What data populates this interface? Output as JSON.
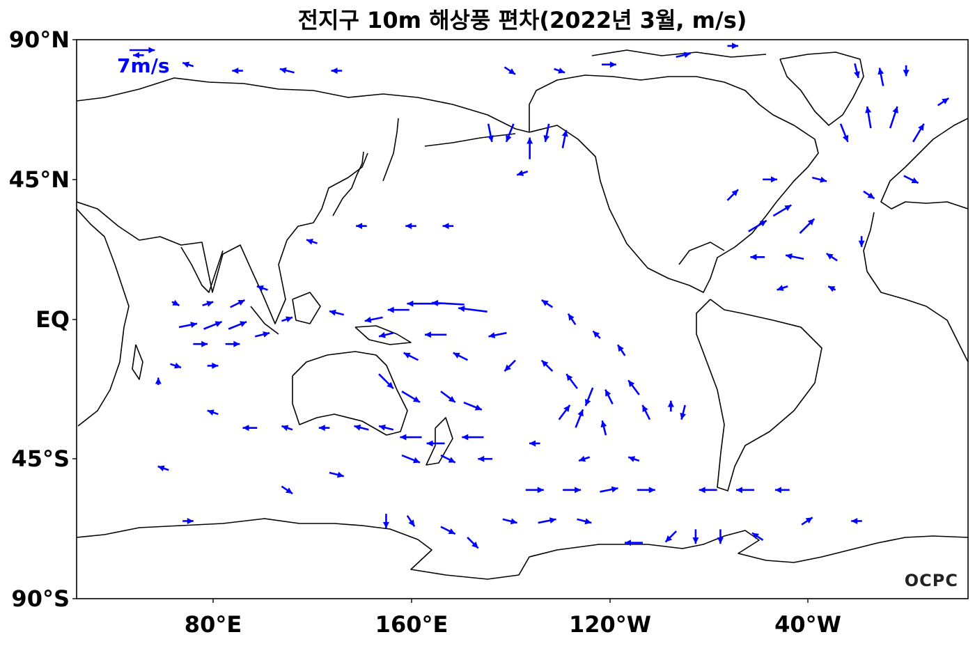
{
  "title": "전지구 10m 해상풍 편차(2022년 3월, m/s)",
  "lat_labels": [
    "90°N",
    "45°N",
    "EQ",
    "45°S",
    "90°S"
  ],
  "lon_labels": [
    "80°E",
    "160°E",
    "120°W",
    "40°W"
  ],
  "reference_vector": {
    "label": "7m/s",
    "speed": 7,
    "color": "#0000ff"
  },
  "logo": "OCPC",
  "colors": {
    "vector": "#0000ff",
    "coastline": "#000000",
    "background": "#ffffff"
  },
  "projection": {
    "type": "PlateCarree",
    "central_longitude": 180
  },
  "chart_data": {
    "type": "vector-field",
    "title": "전지구 10m 해상풍 편차(2022년 3월, m/s)",
    "units": "m/s",
    "lon_range": [
      25,
      385
    ],
    "lat_range": [
      -90,
      90
    ],
    "vectors": [
      {
        "lon": 165,
        "lat": 5,
        "u": -9,
        "v": 0
      },
      {
        "lon": 175,
        "lat": 5,
        "u": -9,
        "v": 0.5
      },
      {
        "lon": 185,
        "lat": 3,
        "u": -8,
        "v": 1
      },
      {
        "lon": 155,
        "lat": 3,
        "u": -6,
        "v": 0
      },
      {
        "lon": 145,
        "lat": 0,
        "u": -5,
        "v": -1
      },
      {
        "lon": 130,
        "lat": 2,
        "u": -4,
        "v": 1
      },
      {
        "lon": 150,
        "lat": -5,
        "u": -4,
        "v": -1
      },
      {
        "lon": 170,
        "lat": -5,
        "u": -6,
        "v": 0
      },
      {
        "lon": 195,
        "lat": -5,
        "u": -5,
        "v": -1
      },
      {
        "lon": 160,
        "lat": -12,
        "u": -4,
        "v": 2
      },
      {
        "lon": 180,
        "lat": -12,
        "u": -4,
        "v": 2
      },
      {
        "lon": 200,
        "lat": -15,
        "u": -3,
        "v": -3
      },
      {
        "lon": 150,
        "lat": -20,
        "u": 4,
        "v": -4
      },
      {
        "lon": 160,
        "lat": -25,
        "u": 5,
        "v": -3
      },
      {
        "lon": 175,
        "lat": -25,
        "u": 4,
        "v": -3
      },
      {
        "lon": 185,
        "lat": -28,
        "u": 5,
        "v": -2
      },
      {
        "lon": 150,
        "lat": -35,
        "u": -4,
        "v": 1
      },
      {
        "lon": 160,
        "lat": -38,
        "u": -6,
        "v": 0
      },
      {
        "lon": 170,
        "lat": -40,
        "u": -5,
        "v": 0
      },
      {
        "lon": 185,
        "lat": -38,
        "u": -6,
        "v": 0
      },
      {
        "lon": 160,
        "lat": -45,
        "u": 5,
        "v": -2
      },
      {
        "lon": 175,
        "lat": -45,
        "u": 4,
        "v": -2
      },
      {
        "lon": 190,
        "lat": -45,
        "u": -4,
        "v": 0
      },
      {
        "lon": 140,
        "lat": -35,
        "u": -4,
        "v": 1
      },
      {
        "lon": 125,
        "lat": -35,
        "u": -3,
        "v": 0
      },
      {
        "lon": 110,
        "lat": -35,
        "u": -3,
        "v": 1
      },
      {
        "lon": 95,
        "lat": -35,
        "u": -4,
        "v": 0
      },
      {
        "lon": 80,
        "lat": -30,
        "u": -3,
        "v": 1
      },
      {
        "lon": 70,
        "lat": -2,
        "u": 5,
        "v": 1
      },
      {
        "lon": 80,
        "lat": -2,
        "u": 5,
        "v": 2
      },
      {
        "lon": 90,
        "lat": -2,
        "u": 5,
        "v": 2
      },
      {
        "lon": 100,
        "lat": -5,
        "u": 4,
        "v": 1
      },
      {
        "lon": 75,
        "lat": -8,
        "u": 4,
        "v": 0
      },
      {
        "lon": 88,
        "lat": -8,
        "u": 4,
        "v": 0
      },
      {
        "lon": 65,
        "lat": -15,
        "u": 3,
        "v": -1
      },
      {
        "lon": 80,
        "lat": -15,
        "u": 3,
        "v": 0
      },
      {
        "lon": 58,
        "lat": -20,
        "u": 0,
        "v": 2
      },
      {
        "lon": 90,
        "lat": 5,
        "u": 4,
        "v": 2
      },
      {
        "lon": 78,
        "lat": 5,
        "u": 3,
        "v": 1
      },
      {
        "lon": 65,
        "lat": 5,
        "u": 2,
        "v": -1
      },
      {
        "lon": 110,
        "lat": 0,
        "u": 3,
        "v": 1
      },
      {
        "lon": 215,
        "lat": 5,
        "u": -3,
        "v": 2
      },
      {
        "lon": 225,
        "lat": 0,
        "u": -2,
        "v": 3
      },
      {
        "lon": 235,
        "lat": -5,
        "u": -2,
        "v": 2
      },
      {
        "lon": 245,
        "lat": -10,
        "u": -2,
        "v": 3
      },
      {
        "lon": 215,
        "lat": -15,
        "u": -3,
        "v": 3
      },
      {
        "lon": 225,
        "lat": -20,
        "u": -3,
        "v": 4
      },
      {
        "lon": 232,
        "lat": -25,
        "u": -2,
        "v": -5
      },
      {
        "lon": 240,
        "lat": -25,
        "u": -2,
        "v": 4
      },
      {
        "lon": 250,
        "lat": -22,
        "u": -3,
        "v": 4
      },
      {
        "lon": 255,
        "lat": -30,
        "u": -2,
        "v": 4
      },
      {
        "lon": 265,
        "lat": -28,
        "u": 0,
        "v": 3
      },
      {
        "lon": 270,
        "lat": -30,
        "u": -1,
        "v": -4
      },
      {
        "lon": 222,
        "lat": -30,
        "u": 3,
        "v": 4
      },
      {
        "lon": 228,
        "lat": -32,
        "u": 2,
        "v": 5
      },
      {
        "lon": 238,
        "lat": -35,
        "u": -1,
        "v": 4
      },
      {
        "lon": 210,
        "lat": -40,
        "u": -3,
        "v": 0
      },
      {
        "lon": 230,
        "lat": -45,
        "u": -3,
        "v": -1
      },
      {
        "lon": 250,
        "lat": -45,
        "u": -3,
        "v": 1
      },
      {
        "lon": 210,
        "lat": -55,
        "u": 5,
        "v": 0
      },
      {
        "lon": 225,
        "lat": -55,
        "u": 5,
        "v": 0
      },
      {
        "lon": 240,
        "lat": -55,
        "u": 5,
        "v": 1
      },
      {
        "lon": 255,
        "lat": -55,
        "u": 5,
        "v": 0
      },
      {
        "lon": 280,
        "lat": -55,
        "u": -5,
        "v": 0
      },
      {
        "lon": 295,
        "lat": -55,
        "u": -5,
        "v": 0
      },
      {
        "lon": 310,
        "lat": -55,
        "u": -4,
        "v": 0
      },
      {
        "lon": 200,
        "lat": -65,
        "u": 4,
        "v": -1
      },
      {
        "lon": 215,
        "lat": -65,
        "u": 5,
        "v": 1
      },
      {
        "lon": 230,
        "lat": -65,
        "u": 4,
        "v": -1
      },
      {
        "lon": 150,
        "lat": -65,
        "u": 0,
        "v": -4
      },
      {
        "lon": 160,
        "lat": -65,
        "u": 2,
        "v": -3
      },
      {
        "lon": 175,
        "lat": -68,
        "u": 4,
        "v": -2
      },
      {
        "lon": 185,
        "lat": -72,
        "u": 3,
        "v": -3
      },
      {
        "lon": 250,
        "lat": -72,
        "u": -5,
        "v": 0
      },
      {
        "lon": 265,
        "lat": -70,
        "u": -3,
        "v": -3
      },
      {
        "lon": 275,
        "lat": -70,
        "u": 0,
        "v": -4
      },
      {
        "lon": 285,
        "lat": -70,
        "u": 0,
        "v": -4
      },
      {
        "lon": 300,
        "lat": -70,
        "u": -3,
        "v": 2
      },
      {
        "lon": 320,
        "lat": -65,
        "u": 3,
        "v": 2
      },
      {
        "lon": 340,
        "lat": -65,
        "u": -3,
        "v": 0
      },
      {
        "lon": 70,
        "lat": -65,
        "u": 3,
        "v": 0
      },
      {
        "lon": 60,
        "lat": -48,
        "u": -3,
        "v": 1
      },
      {
        "lon": 110,
        "lat": -55,
        "u": 3,
        "v": -2
      },
      {
        "lon": 130,
        "lat": -50,
        "u": 4,
        "v": -1
      },
      {
        "lon": 300,
        "lat": 30,
        "u": 5,
        "v": 3
      },
      {
        "lon": 310,
        "lat": 35,
        "u": 5,
        "v": 3
      },
      {
        "lon": 320,
        "lat": 30,
        "u": 4,
        "v": 4
      },
      {
        "lon": 290,
        "lat": 40,
        "u": 3,
        "v": 3
      },
      {
        "lon": 305,
        "lat": 45,
        "u": 4,
        "v": 0
      },
      {
        "lon": 325,
        "lat": 45,
        "u": 4,
        "v": -1
      },
      {
        "lon": 300,
        "lat": 20,
        "u": -4,
        "v": 0
      },
      {
        "lon": 315,
        "lat": 20,
        "u": -5,
        "v": 1
      },
      {
        "lon": 330,
        "lat": 20,
        "u": -3,
        "v": 2
      },
      {
        "lon": 310,
        "lat": 10,
        "u": -3,
        "v": -1
      },
      {
        "lon": 330,
        "lat": 10,
        "u": -2,
        "v": 1
      },
      {
        "lon": 342,
        "lat": 25,
        "u": 0,
        "v": -3
      },
      {
        "lon": 335,
        "lat": 60,
        "u": 2,
        "v": -5
      },
      {
        "lon": 345,
        "lat": 65,
        "u": -1,
        "v": 6
      },
      {
        "lon": 355,
        "lat": 65,
        "u": 2,
        "v": 6
      },
      {
        "lon": 5,
        "lat": 60,
        "u": 3,
        "v": 5
      },
      {
        "lon": 15,
        "lat": 70,
        "u": 3,
        "v": 2
      },
      {
        "lon": 340,
        "lat": 80,
        "u": 1,
        "v": -4
      },
      {
        "lon": 350,
        "lat": 78,
        "u": -1,
        "v": 5
      },
      {
        "lon": 360,
        "lat": 80,
        "u": 0,
        "v": -3
      },
      {
        "lon": 2,
        "lat": 45,
        "u": 4,
        "v": -2
      },
      {
        "lon": 345,
        "lat": 40,
        "u": 3,
        "v": -2
      },
      {
        "lon": 200,
        "lat": 60,
        "u": -2,
        "v": -5
      },
      {
        "lon": 208,
        "lat": 55,
        "u": 0,
        "v": 6
      },
      {
        "lon": 215,
        "lat": 60,
        "u": -1,
        "v": -5
      },
      {
        "lon": 222,
        "lat": 58,
        "u": 1,
        "v": 5
      },
      {
        "lon": 192,
        "lat": 60,
        "u": 1,
        "v": -5
      },
      {
        "lon": 205,
        "lat": 47,
        "u": -3,
        "v": -1
      },
      {
        "lon": 160,
        "lat": 30,
        "u": -3,
        "v": 0
      },
      {
        "lon": 175,
        "lat": 30,
        "u": -3,
        "v": 0
      },
      {
        "lon": 140,
        "lat": 30,
        "u": -3,
        "v": 0
      },
      {
        "lon": 120,
        "lat": 25,
        "u": -3,
        "v": 1
      },
      {
        "lon": 100,
        "lat": 10,
        "u": -3,
        "v": 1
      },
      {
        "lon": 200,
        "lat": 80,
        "u": 3,
        "v": -2
      },
      {
        "lon": 220,
        "lat": 80,
        "u": 3,
        "v": -1
      },
      {
        "lon": 240,
        "lat": 82,
        "u": 4,
        "v": 0
      },
      {
        "lon": 270,
        "lat": 85,
        "u": 4,
        "v": 1
      },
      {
        "lon": 290,
        "lat": 88,
        "u": 3,
        "v": 0
      },
      {
        "lon": 50,
        "lat": 85,
        "u": -3,
        "v": 0
      },
      {
        "lon": 70,
        "lat": 82,
        "u": -3,
        "v": 1
      },
      {
        "lon": 90,
        "lat": 80,
        "u": -3,
        "v": 0
      },
      {
        "lon": 110,
        "lat": 80,
        "u": -4,
        "v": 1
      },
      {
        "lon": 130,
        "lat": 80,
        "u": -3,
        "v": 0
      }
    ]
  }
}
